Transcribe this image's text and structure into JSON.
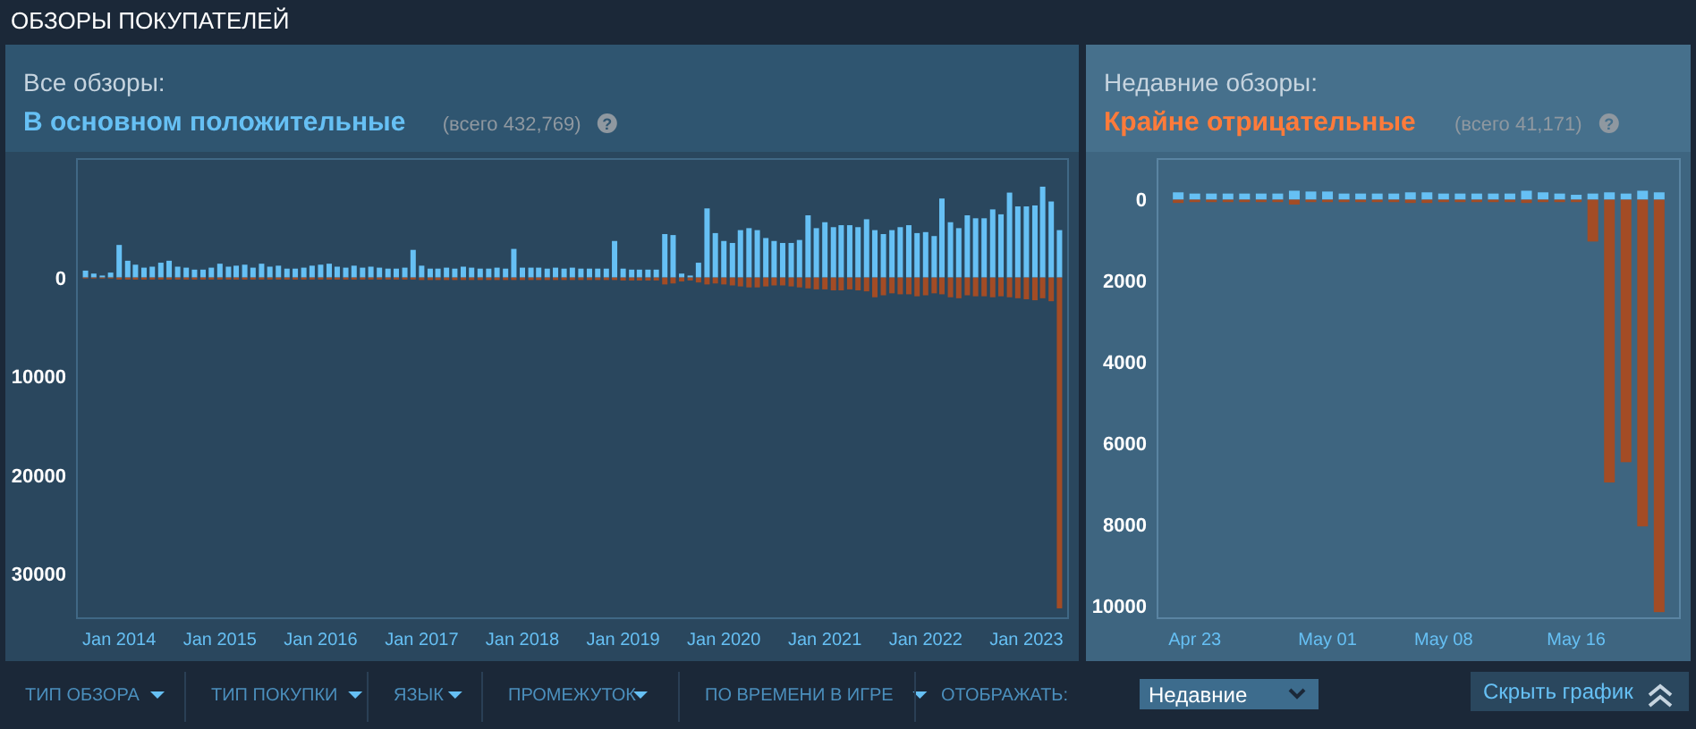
{
  "chart_data": [
    {
      "type": "bar",
      "title": "Все обзоры:",
      "subtitle": "В основном положительные",
      "annotations": [
        "(всего 432,769)"
      ],
      "x": [
        "2013-09",
        "2013-10",
        "2013-11",
        "2013-12",
        "2014-01",
        "2014-02",
        "2014-03",
        "2014-04",
        "2014-05",
        "2014-06",
        "2014-07",
        "2014-08",
        "2014-09",
        "2014-10",
        "2014-11",
        "2014-12",
        "2015-01",
        "2015-02",
        "2015-03",
        "2015-04",
        "2015-05",
        "2015-06",
        "2015-07",
        "2015-08",
        "2015-09",
        "2015-10",
        "2015-11",
        "2015-12",
        "2016-01",
        "2016-02",
        "2016-03",
        "2016-04",
        "2016-05",
        "2016-06",
        "2016-07",
        "2016-08",
        "2016-09",
        "2016-10",
        "2016-11",
        "2016-12",
        "2017-01",
        "2017-02",
        "2017-03",
        "2017-04",
        "2017-05",
        "2017-06",
        "2017-07",
        "2017-08",
        "2017-09",
        "2017-10",
        "2017-11",
        "2017-12",
        "2018-01",
        "2018-02",
        "2018-03",
        "2018-04",
        "2018-05",
        "2018-06",
        "2018-07",
        "2018-08",
        "2018-09",
        "2018-10",
        "2018-11",
        "2018-12",
        "2019-01",
        "2019-02",
        "2019-03",
        "2019-04",
        "2019-05",
        "2019-06",
        "2019-07",
        "2019-08",
        "2019-09",
        "2019-10",
        "2019-11",
        "2019-12",
        "2020-01",
        "2020-02",
        "2020-03",
        "2020-04",
        "2020-05",
        "2020-06",
        "2020-07",
        "2020-08",
        "2020-09",
        "2020-10",
        "2020-11",
        "2020-12",
        "2021-01",
        "2021-02",
        "2021-03",
        "2021-04",
        "2021-05",
        "2021-06",
        "2021-07",
        "2021-08",
        "2021-09",
        "2021-10",
        "2021-11",
        "2021-12",
        "2022-01",
        "2022-02",
        "2022-03",
        "2022-04",
        "2022-05",
        "2022-06",
        "2022-07",
        "2022-08",
        "2022-09",
        "2022-10",
        "2022-11",
        "2022-12",
        "2023-01",
        "2023-02",
        "2023-03",
        "2023-04",
        "2023-05"
      ],
      "series": [
        {
          "color": "#66c0f4",
          "values": [
            700,
            400,
            200,
            500,
            3300,
            1700,
            1300,
            1000,
            1100,
            1500,
            1700,
            1100,
            1000,
            800,
            800,
            1000,
            1400,
            1100,
            1200,
            1300,
            1000,
            1400,
            1100,
            1200,
            900,
            900,
            1000,
            1200,
            1300,
            1400,
            1100,
            1000,
            1200,
            1000,
            1100,
            1000,
            900,
            900,
            1000,
            2800,
            1200,
            900,
            900,
            1000,
            900,
            1100,
            1000,
            900,
            900,
            1000,
            900,
            2900,
            1000,
            1000,
            1000,
            900,
            1000,
            900,
            1000,
            900,
            900,
            900,
            900,
            3700,
            900,
            800,
            800,
            800,
            800,
            4400,
            4300,
            400,
            200,
            1500,
            7000,
            4500,
            3700,
            3500,
            4800,
            5000,
            4800,
            4000,
            3700,
            3500,
            3500,
            3800,
            6300,
            5000,
            5600,
            5100,
            5300,
            5300,
            5100,
            5900,
            4800,
            4400,
            4800,
            5100,
            5300,
            4500,
            4600,
            4200,
            8000,
            5600,
            5000,
            6300,
            6000,
            6000,
            6900,
            6400,
            8600,
            7200,
            7200,
            7300,
            9200,
            7700,
            4800
          ]
        },
        {
          "color": "#a34c25",
          "values": [
            -100,
            -100,
            -100,
            -100,
            -200,
            -200,
            -200,
            -200,
            -200,
            -200,
            -200,
            -200,
            -200,
            -200,
            -200,
            -200,
            -200,
            -200,
            -200,
            -200,
            -200,
            -200,
            -200,
            -200,
            -200,
            -200,
            -200,
            -200,
            -200,
            -200,
            -200,
            -200,
            -200,
            -200,
            -200,
            -200,
            -200,
            -200,
            -200,
            -200,
            -250,
            -250,
            -250,
            -250,
            -250,
            -250,
            -250,
            -250,
            -250,
            -250,
            -250,
            -250,
            -250,
            -250,
            -250,
            -250,
            -250,
            -250,
            -250,
            -250,
            -250,
            -250,
            -250,
            -250,
            -300,
            -300,
            -300,
            -300,
            -300,
            -700,
            -600,
            -400,
            -300,
            -500,
            -700,
            -600,
            -700,
            -800,
            -900,
            -1000,
            -1000,
            -900,
            -800,
            -800,
            -900,
            -1000,
            -1100,
            -1200,
            -1200,
            -1300,
            -1300,
            -1200,
            -1300,
            -1400,
            -2000,
            -1800,
            -1600,
            -1700,
            -1700,
            -1900,
            -1800,
            -1600,
            -1700,
            -2000,
            -2100,
            -1800,
            -1900,
            -1900,
            -2000,
            -1900,
            -2000,
            -2100,
            -2200,
            -2300,
            -2100,
            -2400,
            -33500
          ]
        }
      ],
      "xlim": [
        "2013-08",
        "2023-06"
      ],
      "xticks": [
        {
          "value": "2014-01",
          "label": "Jan 2014"
        },
        {
          "value": "2015-01",
          "label": "Jan 2015"
        },
        {
          "value": "2016-01",
          "label": "Jan 2016"
        },
        {
          "value": "2017-01",
          "label": "Jan 2017"
        },
        {
          "value": "2018-01",
          "label": "Jan 2018"
        },
        {
          "value": "2019-01",
          "label": "Jan 2019"
        },
        {
          "value": "2020-01",
          "label": "Jan 2020"
        },
        {
          "value": "2021-01",
          "label": "Jan 2021"
        },
        {
          "value": "2022-01",
          "label": "Jan 2022"
        },
        {
          "value": "2023-01",
          "label": "Jan 2023"
        }
      ],
      "ylim": [
        -34500,
        12000
      ],
      "yticks": [
        0,
        {
          "value": -10000,
          "label": "10000"
        },
        {
          "value": -20000,
          "label": "20000"
        },
        {
          "value": -30000,
          "label": "30000"
        }
      ]
    },
    {
      "type": "bar",
      "title": "Недавние обзоры:",
      "subtitle": "Крайне отрицательные",
      "annotations": [
        "(всего 41,171)"
      ],
      "x": [
        "2023-04-22",
        "2023-04-23",
        "2023-04-24",
        "2023-04-25",
        "2023-04-26",
        "2023-04-27",
        "2023-04-28",
        "2023-04-29",
        "2023-04-30",
        "2023-05-01",
        "2023-05-02",
        "2023-05-03",
        "2023-05-04",
        "2023-05-05",
        "2023-05-06",
        "2023-05-07",
        "2023-05-08",
        "2023-05-09",
        "2023-05-10",
        "2023-05-11",
        "2023-05-12",
        "2023-05-13",
        "2023-05-14",
        "2023-05-15",
        "2023-05-16",
        "2023-05-17",
        "2023-05-18",
        "2023-05-19",
        "2023-05-20",
        "2023-05-21"
      ],
      "series": [
        {
          "color": "#66c0f4",
          "values": [
            180,
            150,
            150,
            150,
            150,
            150,
            150,
            220,
            200,
            200,
            150,
            150,
            150,
            150,
            180,
            180,
            150,
            150,
            150,
            150,
            150,
            220,
            180,
            150,
            120,
            150,
            180,
            150,
            220,
            180
          ]
        },
        {
          "color": "#a34c25",
          "values": [
            -80,
            -60,
            -60,
            -60,
            -60,
            -60,
            -60,
            -120,
            -60,
            -60,
            -60,
            -60,
            -60,
            -60,
            -80,
            -80,
            -60,
            -60,
            -60,
            -60,
            -60,
            -80,
            -60,
            -60,
            -60,
            -1030,
            -6960,
            -6460,
            -8040,
            -10150
          ]
        }
      ],
      "xlim": [
        "2023-04-20T18:00",
        "2023-05-22T06:00"
      ],
      "xticks": [
        {
          "value": "2023-04-23",
          "label": "Apr 23"
        },
        {
          "value": "2023-05-01",
          "label": "May 01"
        },
        {
          "value": "2023-05-08",
          "label": "May 08"
        },
        {
          "value": "2023-05-16",
          "label": "May 16"
        }
      ],
      "ylim": [
        -10300,
        1000
      ],
      "yticks": [
        0,
        {
          "value": -2000,
          "label": "2000"
        },
        {
          "value": -4000,
          "label": "4000"
        },
        {
          "value": -6000,
          "label": "6000"
        },
        {
          "value": -8000,
          "label": "8000"
        },
        {
          "value": -10000,
          "label": "10000"
        }
      ]
    },
    {
      "type": "other",
      "title": "ОБЗОРЫ ПОКУПАТЕЛЕЙ",
      "subtitle": "?",
      "annotations": [
        "ТИП ОБЗОРА",
        "ТИП ПОКУПКИ",
        "ЯЗЫК",
        "ПРОМЕЖУТОК",
        "ПО ВРЕМЕНИ В ИГРЕ",
        "ОТОБРАЖАТЬ:",
        "Недавние",
        "Скрыть график"
      ]
    }
  ]
}
